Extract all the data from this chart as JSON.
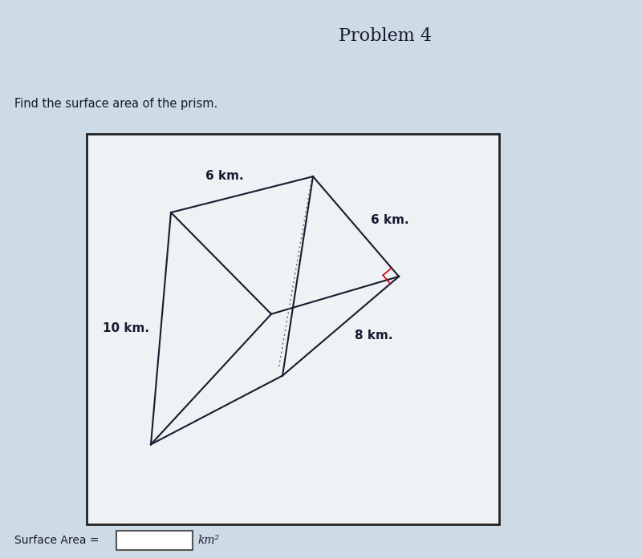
{
  "title": "Problem 4",
  "question": "Find the surface area of the prism.",
  "surface_area_label": "Surface Area =",
  "unit_label": "km²",
  "header_bg": "#c5d5e2",
  "body_bg": "#cddbe6",
  "box_bg": "#eef2f5",
  "label_6km_top": "6 km.",
  "label_6km_right": "6 km.",
  "label_10km": "10 km.",
  "label_8km": "8 km.",
  "label_fontsize": 11,
  "title_fontsize": 16,
  "question_fontsize": 10.5,
  "prism_color": "#1a1a2e",
  "dashed_color": "#666666",
  "red_line_color": "#cc0000",
  "prism_linewidth": 1.5,
  "box_border_color": "#222222",
  "separator_color": "#9ab0c0"
}
